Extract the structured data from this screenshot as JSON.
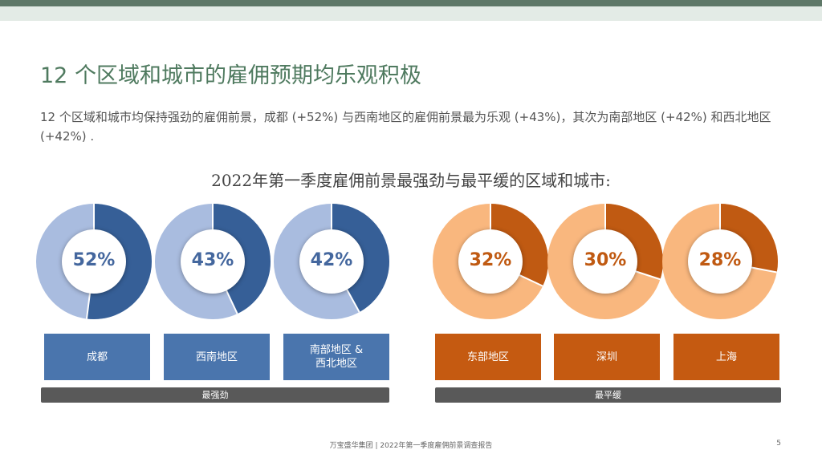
{
  "slide": {
    "title": "12 个区域和城市的雇佣预期均乐观积极",
    "body": "12 个区域和城市均保持强劲的雇佣前景，成都 (+52%) 与西南地区的雇佣前景最为乐观 (+43%)，其次为南部地区 (+42%) 和西北地区 (+42%) ."
  },
  "chart_data": {
    "type": "pie",
    "title": "2022年第一季度雇佣前景最强劲与最平缓的区域和城市:",
    "items": [
      {
        "label": "成都",
        "value": 52,
        "display": "52%",
        "group": "最强劲"
      },
      {
        "label": "西南地区",
        "value": 43,
        "display": "43%",
        "group": "最强劲"
      },
      {
        "label": "南部地区 &\n西北地区",
        "value": 42,
        "display": "42%",
        "group": "最强劲"
      },
      {
        "label": "东部地区",
        "value": 32,
        "display": "32%",
        "group": "最平缓"
      },
      {
        "label": "深圳",
        "value": 30,
        "display": "30%",
        "group": "最平缓"
      },
      {
        "label": "上海",
        "value": 28,
        "display": "28%",
        "group": "最平缓"
      }
    ],
    "groups": [
      "最强劲",
      "最平缓"
    ],
    "colors": {
      "strong_fill": "#365f97",
      "strong_track": "#a9bcdf",
      "weak_fill": "#c05a12",
      "weak_track": "#f9b77e"
    }
  },
  "footer": {
    "text": "万宝盛华集团  |  2022年第一季度雇佣前景调查报告",
    "page_number": "5"
  }
}
